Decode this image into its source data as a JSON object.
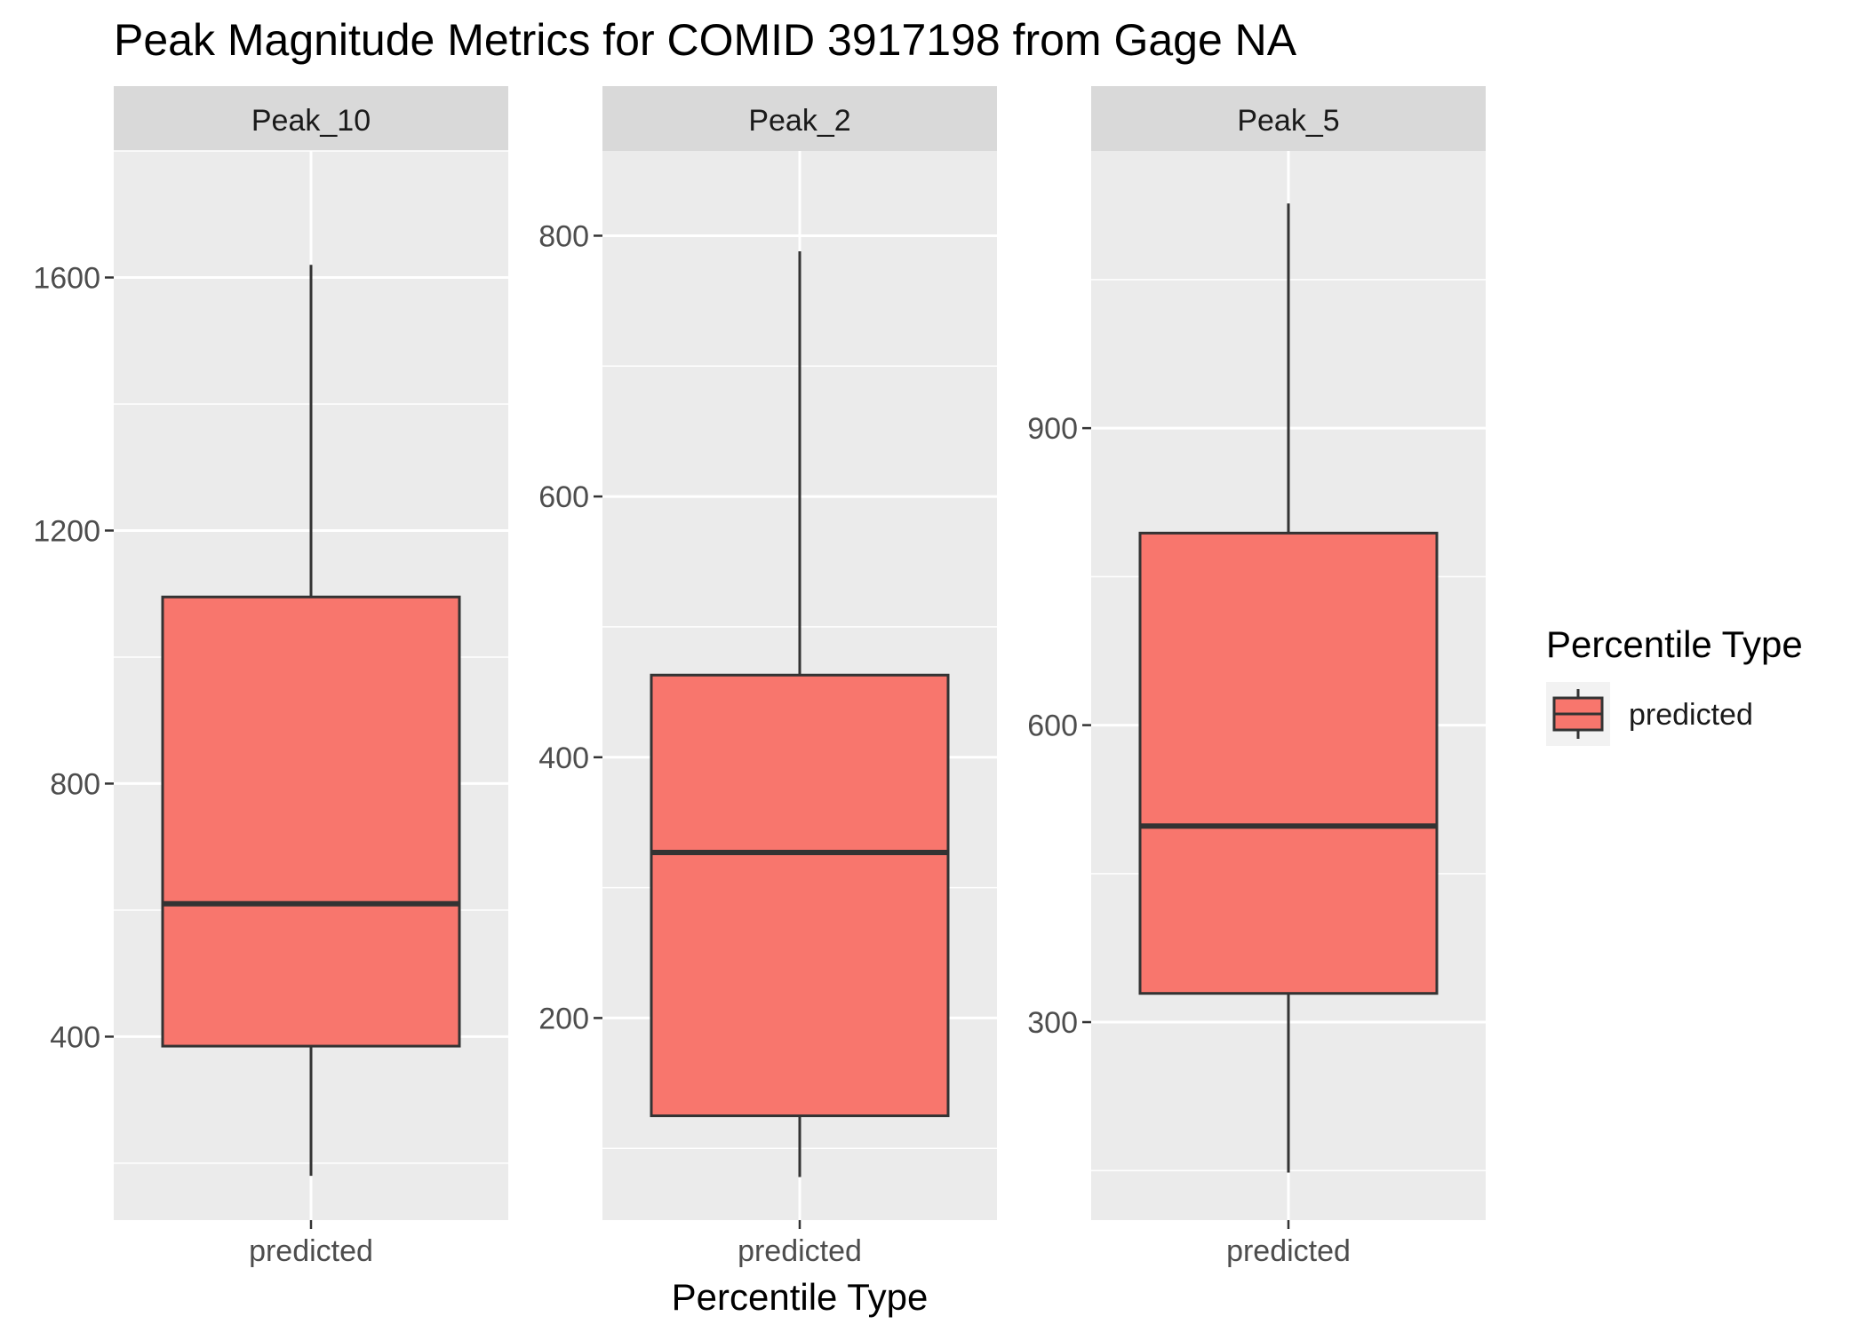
{
  "chart_data": {
    "type": "boxplot",
    "title": "Peak Magnitude Metrics for COMID 3917198 from Gage NA",
    "xlabel": "Percentile Type",
    "ylabel": "",
    "grid": true,
    "legend": {
      "title": "Percentile Type",
      "placement": "right",
      "entries": [
        {
          "label": "predicted",
          "color": "#F8766D"
        }
      ]
    },
    "colors": {
      "box_fill": "#F8766D",
      "box_line": "#333333",
      "panel_bg": "#EBEBEB",
      "strip_bg": "#D9D9D9",
      "grid": "#FFFFFF"
    },
    "facets": [
      {
        "name": "Peak_10",
        "category": "predicted",
        "ylim": [
          110,
          1800
        ],
        "yticks": [
          400,
          800,
          1200,
          1600
        ],
        "stats": {
          "min": 180,
          "q1": 385,
          "median": 610,
          "q3": 1095,
          "max": 1620
        }
      },
      {
        "name": "Peak_2",
        "category": "predicted",
        "ylim": [
          45,
          865
        ],
        "yticks": [
          200,
          400,
          600,
          800
        ],
        "stats": {
          "min": 78,
          "q1": 125,
          "median": 327,
          "q3": 463,
          "max": 788
        }
      },
      {
        "name": "Peak_5",
        "category": "predicted",
        "ylim": [
          100,
          1180
        ],
        "yticks": [
          300,
          600,
          900
        ],
        "stats": {
          "min": 148,
          "q1": 329,
          "median": 498,
          "q3": 794,
          "max": 1127
        }
      }
    ]
  }
}
